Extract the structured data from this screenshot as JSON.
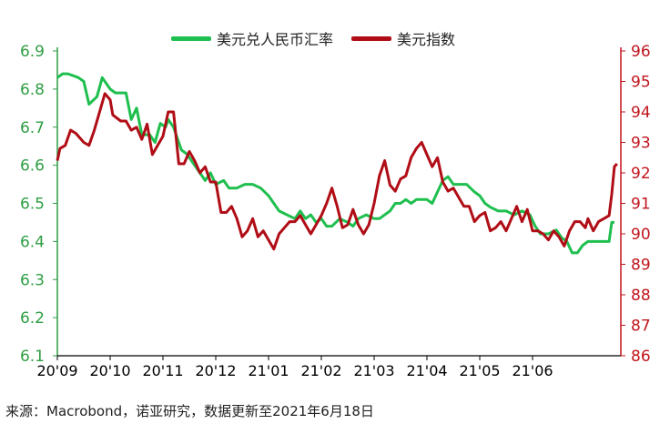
{
  "legend": {
    "cny": "美元兑人民币汇率",
    "dxy": "美元指数"
  },
  "source": "来源：Macrobond，诺亚研究，数据更新至2021年6月18日",
  "colors": {
    "cny": "#1fbf4f",
    "dxy": "#b00d16",
    "left_axis": "#2f9e44",
    "right_axis": "#c0141c",
    "bottom_axis": "#000000"
  },
  "chart_data": {
    "type": "line",
    "x_ticks": [
      "20'09",
      "20'10",
      "20'11",
      "20'12",
      "21'01",
      "21'02",
      "21'03",
      "21'04",
      "21'05",
      "21'06"
    ],
    "x_range": [
      0,
      10.6
    ],
    "y_left": {
      "range": [
        6.1,
        6.9
      ],
      "ticks": [
        "6.1",
        "6.2",
        "6.3",
        "6.4",
        "6.5",
        "6.6",
        "6.7",
        "6.8",
        "6.9"
      ]
    },
    "y_right": {
      "range": [
        86,
        96
      ],
      "ticks": [
        "86",
        "87",
        "88",
        "89",
        "90",
        "91",
        "92",
        "93",
        "94",
        "95",
        "96"
      ]
    },
    "grid": false,
    "legend_position": "top",
    "series": [
      {
        "name": "美元兑人民币汇率",
        "axis": "left",
        "points": [
          [
            0.0,
            6.83
          ],
          [
            0.1,
            6.84
          ],
          [
            0.2,
            6.84
          ],
          [
            0.3,
            6.835
          ],
          [
            0.4,
            6.83
          ],
          [
            0.5,
            6.82
          ],
          [
            0.6,
            6.76
          ],
          [
            0.75,
            6.78
          ],
          [
            0.85,
            6.83
          ],
          [
            1.0,
            6.8
          ],
          [
            1.1,
            6.79
          ],
          [
            1.3,
            6.79
          ],
          [
            1.4,
            6.72
          ],
          [
            1.5,
            6.75
          ],
          [
            1.6,
            6.68
          ],
          [
            1.75,
            6.68
          ],
          [
            1.85,
            6.66
          ],
          [
            1.95,
            6.71
          ],
          [
            2.05,
            6.7
          ],
          [
            2.1,
            6.72
          ],
          [
            2.2,
            6.7
          ],
          [
            2.35,
            6.64
          ],
          [
            2.45,
            6.63
          ],
          [
            2.55,
            6.61
          ],
          [
            2.7,
            6.58
          ],
          [
            2.8,
            6.56
          ],
          [
            2.9,
            6.58
          ],
          [
            3.0,
            6.55
          ],
          [
            3.15,
            6.56
          ],
          [
            3.25,
            6.54
          ],
          [
            3.4,
            6.54
          ],
          [
            3.55,
            6.55
          ],
          [
            3.7,
            6.55
          ],
          [
            3.85,
            6.54
          ],
          [
            4.0,
            6.52
          ],
          [
            4.1,
            6.5
          ],
          [
            4.2,
            6.48
          ],
          [
            4.35,
            6.47
          ],
          [
            4.5,
            6.46
          ],
          [
            4.6,
            6.48
          ],
          [
            4.7,
            6.46
          ],
          [
            4.8,
            6.47
          ],
          [
            4.9,
            6.45
          ],
          [
            5.0,
            6.46
          ],
          [
            5.1,
            6.44
          ],
          [
            5.2,
            6.44
          ],
          [
            5.35,
            6.46
          ],
          [
            5.5,
            6.45
          ],
          [
            5.6,
            6.44
          ],
          [
            5.7,
            6.46
          ],
          [
            5.85,
            6.47
          ],
          [
            6.0,
            6.46
          ],
          [
            6.1,
            6.46
          ],
          [
            6.2,
            6.47
          ],
          [
            6.3,
            6.48
          ],
          [
            6.4,
            6.5
          ],
          [
            6.5,
            6.5
          ],
          [
            6.6,
            6.51
          ],
          [
            6.7,
            6.5
          ],
          [
            6.8,
            6.51
          ],
          [
            7.0,
            6.51
          ],
          [
            7.1,
            6.5
          ],
          [
            7.2,
            6.53
          ],
          [
            7.3,
            6.56
          ],
          [
            7.4,
            6.57
          ],
          [
            7.5,
            6.55
          ],
          [
            7.6,
            6.55
          ],
          [
            7.75,
            6.55
          ],
          [
            7.9,
            6.53
          ],
          [
            8.0,
            6.52
          ],
          [
            8.1,
            6.5
          ],
          [
            8.2,
            6.49
          ],
          [
            8.35,
            6.48
          ],
          [
            8.5,
            6.48
          ],
          [
            8.65,
            6.47
          ],
          [
            8.8,
            6.48
          ],
          [
            8.95,
            6.47
          ],
          [
            9.05,
            6.44
          ],
          [
            9.15,
            6.42
          ],
          [
            9.3,
            6.42
          ],
          [
            9.45,
            6.43
          ],
          [
            9.55,
            6.41
          ],
          [
            9.65,
            6.4
          ],
          [
            9.75,
            6.37
          ],
          [
            9.85,
            6.37
          ],
          [
            9.95,
            6.39
          ],
          [
            10.05,
            6.4
          ],
          [
            10.2,
            6.4
          ],
          [
            10.35,
            6.4
          ],
          [
            10.45,
            6.4
          ],
          [
            10.5,
            6.45
          ],
          [
            10.55,
            6.45
          ]
        ]
      },
      {
        "name": "美元指数",
        "axis": "right",
        "points": [
          [
            0.0,
            92.4
          ],
          [
            0.05,
            92.8
          ],
          [
            0.15,
            92.9
          ],
          [
            0.25,
            93.4
          ],
          [
            0.35,
            93.3
          ],
          [
            0.5,
            93.0
          ],
          [
            0.6,
            92.9
          ],
          [
            0.7,
            93.4
          ],
          [
            0.8,
            94.0
          ],
          [
            0.9,
            94.6
          ],
          [
            1.0,
            94.4
          ],
          [
            1.05,
            93.9
          ],
          [
            1.2,
            93.7
          ],
          [
            1.3,
            93.7
          ],
          [
            1.4,
            93.4
          ],
          [
            1.5,
            93.5
          ],
          [
            1.6,
            93.1
          ],
          [
            1.7,
            93.6
          ],
          [
            1.8,
            92.6
          ],
          [
            1.9,
            92.9
          ],
          [
            2.0,
            93.2
          ],
          [
            2.1,
            94.0
          ],
          [
            2.2,
            94.0
          ],
          [
            2.3,
            92.3
          ],
          [
            2.4,
            92.3
          ],
          [
            2.5,
            92.7
          ],
          [
            2.6,
            92.4
          ],
          [
            2.7,
            92.0
          ],
          [
            2.8,
            92.2
          ],
          [
            2.9,
            91.7
          ],
          [
            3.0,
            91.7
          ],
          [
            3.1,
            90.7
          ],
          [
            3.2,
            90.7
          ],
          [
            3.3,
            90.9
          ],
          [
            3.4,
            90.5
          ],
          [
            3.5,
            89.9
          ],
          [
            3.6,
            90.1
          ],
          [
            3.7,
            90.5
          ],
          [
            3.8,
            89.9
          ],
          [
            3.9,
            90.1
          ],
          [
            4.0,
            89.8
          ],
          [
            4.1,
            89.5
          ],
          [
            4.2,
            90.0
          ],
          [
            4.3,
            90.2
          ],
          [
            4.4,
            90.4
          ],
          [
            4.5,
            90.4
          ],
          [
            4.6,
            90.6
          ],
          [
            4.7,
            90.3
          ],
          [
            4.8,
            90.0
          ],
          [
            4.9,
            90.3
          ],
          [
            5.0,
            90.6
          ],
          [
            5.1,
            91.0
          ],
          [
            5.2,
            91.5
          ],
          [
            5.3,
            90.9
          ],
          [
            5.4,
            90.2
          ],
          [
            5.5,
            90.3
          ],
          [
            5.6,
            90.8
          ],
          [
            5.7,
            90.3
          ],
          [
            5.8,
            90.0
          ],
          [
            5.9,
            90.3
          ],
          [
            6.0,
            91.0
          ],
          [
            6.1,
            91.9
          ],
          [
            6.2,
            92.4
          ],
          [
            6.3,
            91.6
          ],
          [
            6.4,
            91.4
          ],
          [
            6.5,
            91.8
          ],
          [
            6.6,
            91.9
          ],
          [
            6.7,
            92.5
          ],
          [
            6.8,
            92.8
          ],
          [
            6.9,
            93.0
          ],
          [
            7.0,
            92.6
          ],
          [
            7.1,
            92.2
          ],
          [
            7.2,
            92.5
          ],
          [
            7.3,
            91.7
          ],
          [
            7.4,
            91.4
          ],
          [
            7.5,
            91.5
          ],
          [
            7.6,
            91.2
          ],
          [
            7.7,
            90.9
          ],
          [
            7.8,
            90.9
          ],
          [
            7.9,
            90.4
          ],
          [
            8.0,
            90.6
          ],
          [
            8.1,
            90.7
          ],
          [
            8.2,
            90.1
          ],
          [
            8.3,
            90.2
          ],
          [
            8.4,
            90.4
          ],
          [
            8.5,
            90.1
          ],
          [
            8.6,
            90.5
          ],
          [
            8.7,
            90.9
          ],
          [
            8.8,
            90.4
          ],
          [
            8.9,
            90.8
          ],
          [
            9.0,
            90.1
          ],
          [
            9.1,
            90.1
          ],
          [
            9.2,
            90.0
          ],
          [
            9.3,
            89.8
          ],
          [
            9.4,
            90.1
          ],
          [
            9.5,
            89.9
          ],
          [
            9.6,
            89.6
          ],
          [
            9.7,
            90.1
          ],
          [
            9.8,
            90.4
          ],
          [
            9.9,
            90.4
          ],
          [
            10.0,
            90.2
          ],
          [
            10.05,
            90.5
          ],
          [
            10.15,
            90.1
          ],
          [
            10.25,
            90.4
          ],
          [
            10.35,
            90.5
          ],
          [
            10.45,
            90.6
          ],
          [
            10.5,
            91.3
          ],
          [
            10.55,
            92.2
          ],
          [
            10.6,
            92.3
          ]
        ]
      }
    ]
  }
}
